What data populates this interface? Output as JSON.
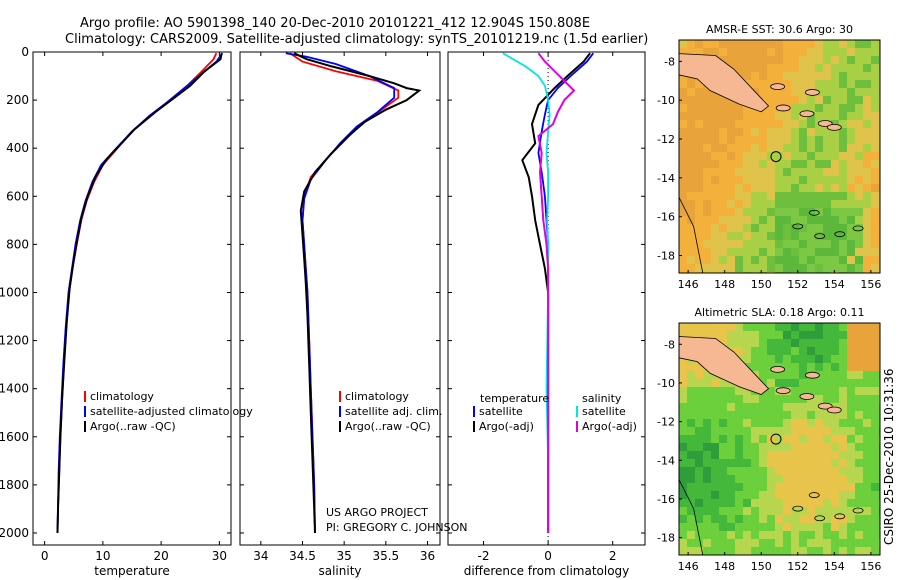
{
  "header": {
    "line1": "Argo profile: AO 5901398_140 20-Dec-2010 20101221_412 12.904S 150.808E",
    "line2": "Climatology: CARS2009. Satellite-adjusted climatology: synTS_20101219.nc (1.5d earlier)"
  },
  "colors": {
    "climatology": "#ff0000",
    "satellite": "#0000ff",
    "argo": "#000000",
    "sat_diff": "#00e5e5",
    "argo_diff": "#e000e0"
  },
  "chart_data": [
    {
      "type": "line",
      "name": "temperature",
      "xlabel": "temperature",
      "xlim": [
        -2,
        32
      ],
      "ylim": [
        0,
        2050
      ],
      "y_inverted": true,
      "xticks": [
        0,
        10,
        20,
        30
      ],
      "yticks": [
        0,
        200,
        400,
        600,
        800,
        1000,
        1200,
        1400,
        1600,
        1800,
        2000
      ],
      "legend": [
        "climatology",
        "satellite-adjusted climatology",
        "Argo(..raw -QC)"
      ],
      "series": [
        {
          "name": "climatology",
          "color": "#ff0000",
          "points": [
            [
              29.5,
              5
            ],
            [
              29,
              30
            ],
            [
              27,
              80
            ],
            [
              24.5,
              140
            ],
            [
              21.5,
              200
            ],
            [
              18.5,
              260
            ],
            [
              15,
              330
            ],
            [
              12.5,
              400
            ],
            [
              10,
              470
            ],
            [
              8.5,
              540
            ],
            [
              7.2,
              620
            ],
            [
              6.3,
              700
            ],
            [
              5.5,
              800
            ],
            [
              4.8,
              900
            ],
            [
              4.2,
              1000
            ],
            [
              3.7,
              1150
            ],
            [
              3.3,
              1300
            ],
            [
              3,
              1450
            ],
            [
              2.7,
              1600
            ],
            [
              2.5,
              1750
            ],
            [
              2.3,
              1900
            ],
            [
              2.2,
              2000
            ]
          ]
        },
        {
          "name": "satellite-adjusted climatology",
          "color": "#0000ff",
          "points": [
            [
              30.5,
              5
            ],
            [
              29.5,
              40
            ],
            [
              26.5,
              100
            ],
            [
              23.5,
              160
            ],
            [
              21,
              210
            ],
            [
              18,
              265
            ],
            [
              15,
              330
            ],
            [
              12.3,
              400
            ],
            [
              9.7,
              470
            ],
            [
              8.2,
              540
            ],
            [
              7,
              620
            ],
            [
              6.1,
              700
            ],
            [
              5.3,
              800
            ],
            [
              4.7,
              900
            ],
            [
              4.1,
              1000
            ],
            [
              3.6,
              1150
            ],
            [
              3.2,
              1300
            ],
            [
              2.9,
              1450
            ],
            [
              2.6,
              1600
            ],
            [
              2.4,
              1750
            ],
            [
              2.3,
              1900
            ],
            [
              2.2,
              2000
            ]
          ]
        },
        {
          "name": "Argo(..raw -QC)",
          "color": "#000000",
          "points": [
            [
              30.4,
              5
            ],
            [
              30.2,
              30
            ],
            [
              27.5,
              80
            ],
            [
              25,
              140
            ],
            [
              22,
              195
            ],
            [
              19,
              250
            ],
            [
              15.5,
              320
            ],
            [
              12.8,
              390
            ],
            [
              10.5,
              450
            ],
            [
              8.7,
              520
            ],
            [
              7.4,
              600
            ],
            [
              6.4,
              680
            ],
            [
              5.6,
              780
            ],
            [
              4.9,
              880
            ],
            [
              4.3,
              980
            ],
            [
              3.8,
              1120
            ],
            [
              3.4,
              1280
            ],
            [
              3,
              1440
            ],
            [
              2.7,
              1600
            ],
            [
              2.5,
              1750
            ],
            [
              2.3,
              1900
            ],
            [
              2.2,
              2000
            ]
          ]
        }
      ]
    },
    {
      "type": "line",
      "name": "salinity",
      "xlabel": "salinity",
      "xlim": [
        33.75,
        36.15
      ],
      "ylim": [
        0,
        2050
      ],
      "y_inverted": true,
      "xticks": [
        34,
        34.5,
        35,
        35.5,
        36
      ],
      "legend": [
        "climatology",
        "satellite adj. clim.",
        "Argo(..raw -QC)"
      ],
      "annotation": [
        "US ARGO PROJECT",
        "PI: GREGORY C. JOHNSON"
      ],
      "series": [
        {
          "name": "climatology",
          "color": "#ff0000",
          "points": [
            [
              34.35,
              5
            ],
            [
              34.5,
              40
            ],
            [
              34.9,
              80
            ],
            [
              35.4,
              120
            ],
            [
              35.65,
              160
            ],
            [
              35.65,
              190
            ],
            [
              35.45,
              240
            ],
            [
              35.2,
              300
            ],
            [
              35,
              370
            ],
            [
              34.8,
              440
            ],
            [
              34.6,
              520
            ],
            [
              34.52,
              600
            ],
            [
              34.5,
              700
            ],
            [
              34.52,
              800
            ],
            [
              34.54,
              900
            ],
            [
              34.56,
              1000
            ],
            [
              34.58,
              1200
            ],
            [
              34.6,
              1400
            ],
            [
              34.62,
              1600
            ],
            [
              34.64,
              1800
            ],
            [
              34.65,
              2000
            ]
          ]
        },
        {
          "name": "satellite adj. clim.",
          "color": "#0000ff",
          "points": [
            [
              34.3,
              5
            ],
            [
              34.55,
              20
            ],
            [
              34.9,
              50
            ],
            [
              35.3,
              100
            ],
            [
              35.6,
              150
            ],
            [
              35.6,
              190
            ],
            [
              35.4,
              250
            ],
            [
              35.15,
              310
            ],
            [
              34.95,
              380
            ],
            [
              34.78,
              450
            ],
            [
              34.6,
              530
            ],
            [
              34.52,
              610
            ],
            [
              34.5,
              700
            ],
            [
              34.52,
              800
            ],
            [
              34.54,
              900
            ],
            [
              34.56,
              1000
            ],
            [
              34.58,
              1200
            ],
            [
              34.6,
              1400
            ],
            [
              34.62,
              1600
            ],
            [
              34.64,
              1800
            ],
            [
              34.65,
              2000
            ]
          ]
        },
        {
          "name": "Argo(..raw -QC)",
          "color": "#000000",
          "points": [
            [
              34.4,
              5
            ],
            [
              34.55,
              30
            ],
            [
              34.85,
              60
            ],
            [
              35.3,
              100
            ],
            [
              35.6,
              130
            ],
            [
              35.75,
              150
            ],
            [
              35.9,
              160
            ],
            [
              35.75,
              200
            ],
            [
              35.5,
              240
            ],
            [
              35.25,
              290
            ],
            [
              35.05,
              350
            ],
            [
              34.85,
              420
            ],
            [
              34.65,
              500
            ],
            [
              34.52,
              580
            ],
            [
              34.48,
              660
            ],
            [
              34.5,
              760
            ],
            [
              34.52,
              860
            ],
            [
              34.54,
              960
            ],
            [
              34.56,
              1100
            ],
            [
              34.58,
              1300
            ],
            [
              34.6,
              1500
            ],
            [
              34.62,
              1700
            ],
            [
              34.64,
              1900
            ],
            [
              34.65,
              2000
            ]
          ]
        }
      ]
    },
    {
      "type": "line",
      "name": "difference",
      "xlabel": "difference from climatology",
      "xlim": [
        -3.1,
        3.0
      ],
      "ylim": [
        0,
        2050
      ],
      "y_inverted": true,
      "xticks": [
        -2,
        0,
        2
      ],
      "legend_left_title": "temperature",
      "legend_left": [
        "satellite",
        "Argo(-adj)"
      ],
      "legend_right_title": "salinity",
      "legend_right": [
        "satellite",
        "Argo(-adj)"
      ],
      "series": [
        {
          "name": "temperature satellite",
          "color": "#0000ff",
          "points": [
            [
              1.4,
              5
            ],
            [
              1.2,
              40
            ],
            [
              0.7,
              100
            ],
            [
              0.3,
              150
            ],
            [
              0,
              200
            ],
            [
              -0.1,
              260
            ],
            [
              -0.2,
              330
            ],
            [
              -0.3,
              420
            ],
            [
              -0.2,
              500
            ],
            [
              -0.1,
              600
            ],
            [
              -0.05,
              700
            ],
            [
              0,
              800
            ],
            [
              0,
              1000
            ],
            [
              0,
              1400
            ],
            [
              0,
              2000
            ]
          ]
        },
        {
          "name": "temperature Argo(-adj)",
          "color": "#000000",
          "points": [
            [
              1.3,
              5
            ],
            [
              1.1,
              40
            ],
            [
              0.6,
              100
            ],
            [
              0.2,
              150
            ],
            [
              -0.3,
              220
            ],
            [
              -0.5,
              300
            ],
            [
              -0.4,
              380
            ],
            [
              -0.8,
              450
            ],
            [
              -0.6,
              520
            ],
            [
              -0.5,
              600
            ],
            [
              -0.4,
              700
            ],
            [
              -0.25,
              800
            ],
            [
              -0.1,
              900
            ],
            [
              0,
              1000
            ],
            [
              0,
              1200
            ],
            [
              0,
              1400
            ],
            [
              0,
              1700
            ],
            [
              0,
              2000
            ]
          ]
        },
        {
          "name": "salinity satellite",
          "color": "#00e5e5",
          "points": [
            [
              -1.4,
              5
            ],
            [
              -0.7,
              60
            ],
            [
              -0.3,
              100
            ],
            [
              -0.1,
              140
            ],
            [
              0,
              200
            ],
            [
              0.05,
              260
            ],
            [
              0,
              330
            ],
            [
              -0.05,
              420
            ],
            [
              0,
              500
            ],
            [
              0,
              600
            ],
            [
              -0.03,
              700
            ],
            [
              0,
              800
            ],
            [
              0,
              1000
            ],
            [
              -0.05,
              1400
            ],
            [
              0,
              1700
            ],
            [
              0,
              2000
            ]
          ]
        },
        {
          "name": "salinity Argo(-adj)",
          "color": "#e000e0",
          "points": [
            [
              -0.3,
              5
            ],
            [
              -0.1,
              40
            ],
            [
              0.2,
              80
            ],
            [
              0.5,
              120
            ],
            [
              0.8,
              160
            ],
            [
              0.5,
              200
            ],
            [
              0.3,
              250
            ],
            [
              0.15,
              300
            ],
            [
              -0.3,
              350
            ],
            [
              -0.2,
              420
            ],
            [
              -0.25,
              500
            ],
            [
              -0.2,
              600
            ],
            [
              -0.15,
              700
            ],
            [
              -0.05,
              800
            ],
            [
              0,
              900
            ],
            [
              0,
              1000
            ],
            [
              0,
              1400
            ],
            [
              0,
              2000
            ]
          ]
        }
      ]
    },
    {
      "type": "heatmap",
      "name": "AMSR-E SST",
      "title": "AMSR-E SST: 30.6  Argo: 30",
      "xlim": [
        145.5,
        156.5
      ],
      "ylim": [
        -18.9,
        -6.9
      ],
      "xticks": [
        146,
        148,
        150,
        152,
        154,
        156
      ],
      "yticks": [
        -8,
        -10,
        -12,
        -14,
        -16,
        -18
      ],
      "argo_position": [
        150.808,
        -12.904
      ]
    },
    {
      "type": "heatmap",
      "name": "Altimetric SLA",
      "title": "Altimetric SLA: 0.18  Argo: 0.11",
      "xlim": [
        145.5,
        156.5
      ],
      "ylim": [
        -18.9,
        -6.9
      ],
      "xticks": [
        146,
        148,
        150,
        152,
        154,
        156
      ],
      "yticks": [
        -8,
        -10,
        -12,
        -14,
        -16,
        -18
      ],
      "argo_position": [
        150.808,
        -12.904
      ]
    }
  ],
  "footer": {
    "side_label": "CSIRO 25-Dec-2010 10:31:36"
  }
}
